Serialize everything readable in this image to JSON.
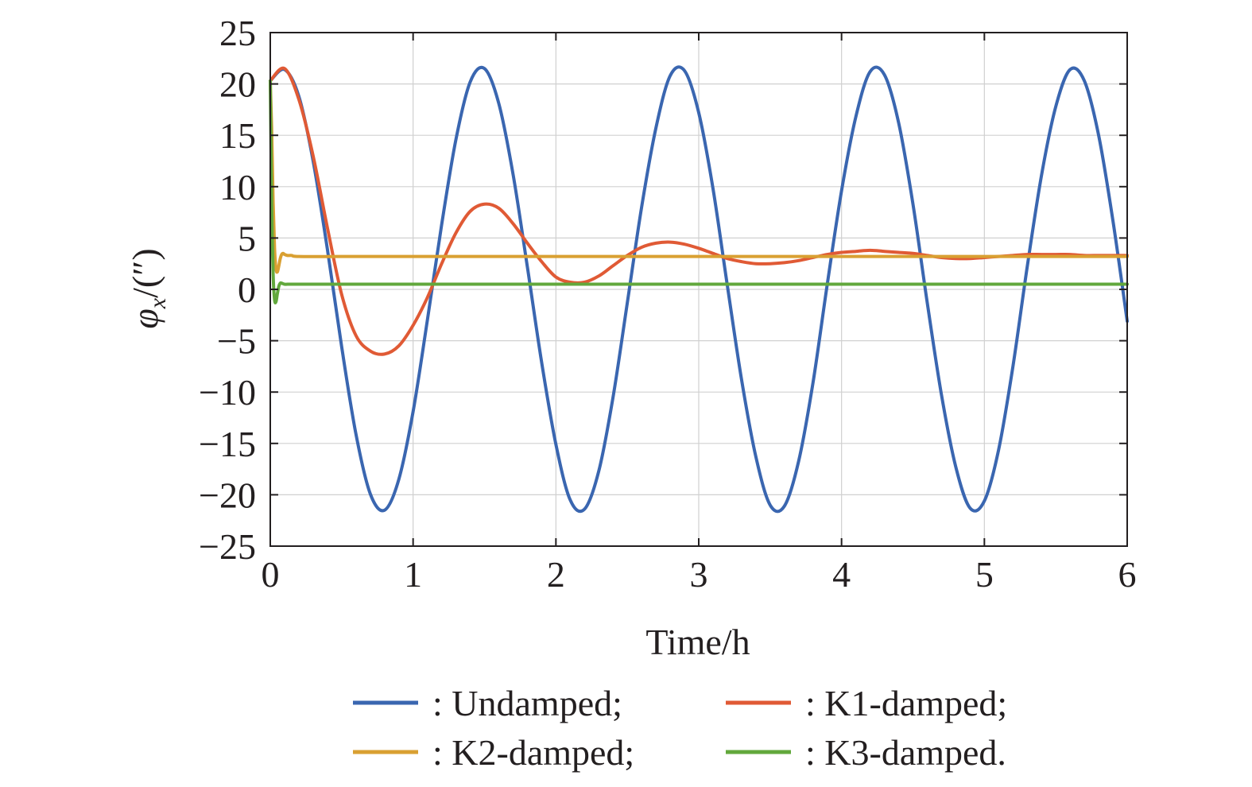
{
  "chart_data": {
    "type": "line",
    "xlabel": "Time/h",
    "ylabel_symbol": "φ",
    "ylabel_subscript": "x",
    "ylabel_unit": "/(″)",
    "xlim": [
      0,
      6
    ],
    "ylim": [
      -25,
      25
    ],
    "xticks": [
      0,
      1,
      2,
      3,
      4,
      5,
      6
    ],
    "yticks": [
      25,
      20,
      15,
      10,
      5,
      0,
      -5,
      -10,
      -15,
      -20,
      -25
    ],
    "xtick_labels": [
      "0",
      "1",
      "2",
      "3",
      "4",
      "5",
      "6"
    ],
    "ytick_labels": [
      "25",
      "20",
      "15",
      "10",
      "5",
      "0",
      "−5",
      "−10",
      "−15",
      "−20",
      "−25"
    ],
    "grid": true,
    "legend_position": "below",
    "series": [
      {
        "name": ": Undamped;",
        "color": "#3a66b0",
        "x": [
          0,
          0.1,
          0.2,
          0.3,
          0.4,
          0.5,
          0.6,
          0.7,
          0.8,
          0.9,
          1.0,
          1.1,
          1.2,
          1.3,
          1.4,
          1.5,
          1.6,
          1.7,
          1.8,
          1.9,
          2.0,
          2.1,
          2.2,
          2.3,
          2.4,
          2.5,
          2.6,
          2.7,
          2.8,
          2.9,
          3.0,
          3.1,
          3.2,
          3.3,
          3.4,
          3.5,
          3.6,
          3.7,
          3.8,
          3.9,
          4.0,
          4.1,
          4.2,
          4.3,
          4.4,
          4.5,
          4.6,
          4.7,
          4.8,
          4.9,
          5.0,
          5.1,
          5.2,
          5.3,
          5.4,
          5.5,
          5.6,
          5.7,
          5.8,
          5.9,
          6.0
        ],
        "values": [
          20.3,
          21.4,
          18.8,
          12.5,
          3.9,
          -5.6,
          -14.1,
          -19.9,
          -21.5,
          -18.5,
          -11.9,
          -3.0,
          6.3,
          14.6,
          20.2,
          21.5,
          18.1,
          11.2,
          2.2,
          -7.1,
          -15.1,
          -20.5,
          -21.4,
          -17.7,
          -10.5,
          -1.3,
          8.0,
          15.7,
          20.8,
          21.3,
          17.2,
          9.8,
          0.4,
          -8.8,
          -16.3,
          -21.0,
          -21.1,
          -16.7,
          -9.1,
          0.5,
          9.6,
          16.8,
          21.2,
          20.9,
          16.2,
          8.3,
          -1.3,
          -10.3,
          -17.3,
          -21.3,
          -20.6,
          -15.6,
          -7.5,
          2.2,
          11.1,
          17.8,
          21.4,
          20.3,
          15.0,
          6.7,
          -3.1
        ]
      },
      {
        "name": ": K1-damped;",
        "color": "#e05a35",
        "x": [
          0,
          0.1,
          0.2,
          0.3,
          0.4,
          0.5,
          0.6,
          0.7,
          0.8,
          0.9,
          1.0,
          1.1,
          1.2,
          1.3,
          1.4,
          1.5,
          1.6,
          1.7,
          1.8,
          1.9,
          2.0,
          2.1,
          2.2,
          2.3,
          2.4,
          2.5,
          2.6,
          2.7,
          2.8,
          2.9,
          3.0,
          3.1,
          3.2,
          3.3,
          3.4,
          3.5,
          3.6,
          3.7,
          3.8,
          3.9,
          4.0,
          4.1,
          4.2,
          4.3,
          4.4,
          4.5,
          4.6,
          4.7,
          4.8,
          4.9,
          5.0,
          5.1,
          5.2,
          5.3,
          5.4,
          5.5,
          5.6,
          5.7,
          5.8,
          5.9,
          6.0
        ],
        "values": [
          20.3,
          21.5,
          18.5,
          13.0,
          6.0,
          -0.5,
          -4.5,
          -6.0,
          -6.3,
          -5.5,
          -3.5,
          -0.8,
          2.5,
          5.5,
          7.6,
          8.3,
          7.9,
          6.4,
          4.5,
          2.7,
          1.2,
          0.7,
          0.7,
          1.3,
          2.3,
          3.3,
          4.1,
          4.5,
          4.6,
          4.4,
          4.0,
          3.5,
          3.0,
          2.7,
          2.5,
          2.5,
          2.6,
          2.8,
          3.1,
          3.4,
          3.6,
          3.7,
          3.8,
          3.7,
          3.6,
          3.5,
          3.3,
          3.1,
          3.0,
          3.0,
          3.1,
          3.2,
          3.3,
          3.4,
          3.4,
          3.4,
          3.4,
          3.3,
          3.3,
          3.3,
          3.3
        ]
      },
      {
        "name": ": K2-damped;",
        "color": "#d9a032",
        "x": [
          0,
          0.01,
          0.02,
          0.03,
          0.04,
          0.05,
          0.06,
          0.07,
          0.08,
          0.09,
          0.1,
          0.12,
          0.15,
          0.2,
          0.5,
          1,
          2,
          3,
          4,
          5,
          6
        ],
        "values": [
          20.3,
          15.5,
          8.5,
          4.0,
          2.0,
          1.7,
          2.3,
          3.0,
          3.4,
          3.5,
          3.4,
          3.3,
          3.3,
          3.2,
          3.2,
          3.2,
          3.2,
          3.2,
          3.2,
          3.2,
          3.2
        ]
      },
      {
        "name": ": K3-damped.",
        "color": "#62a83c",
        "x": [
          0,
          0.005,
          0.01,
          0.02,
          0.03,
          0.04,
          0.05,
          0.06,
          0.07,
          0.08,
          0.1,
          0.12,
          0.15,
          0.2,
          0.5,
          1,
          2,
          3,
          4,
          5,
          6
        ],
        "values": [
          20.3,
          14.0,
          8.0,
          1.5,
          -1.0,
          -1.2,
          -0.4,
          0.3,
          0.6,
          0.6,
          0.5,
          0.5,
          0.5,
          0.5,
          0.5,
          0.5,
          0.5,
          0.5,
          0.5,
          0.5,
          0.5
        ]
      }
    ]
  }
}
